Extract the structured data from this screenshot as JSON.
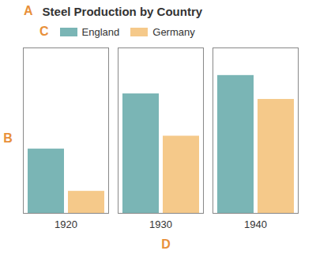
{
  "chart_data": {
    "type": "bar",
    "title": "Steel Production by Country",
    "annotations": [
      "A",
      "C"
    ],
    "x_label": "D",
    "y_label": "B",
    "categories": [
      "1920",
      "1930",
      "1940"
    ],
    "series": [
      {
        "name": "England",
        "color": "#7ab5b5",
        "values": [
          3.5,
          6.5,
          7.5
        ]
      },
      {
        "name": "Germany",
        "color": "#f5c98a",
        "values": [
          1.2,
          4.2,
          6.2
        ]
      }
    ],
    "ylim": [
      0,
      9
    ],
    "yticks": [],
    "grid": false,
    "tick_labels": "x",
    "legend": "top"
  }
}
